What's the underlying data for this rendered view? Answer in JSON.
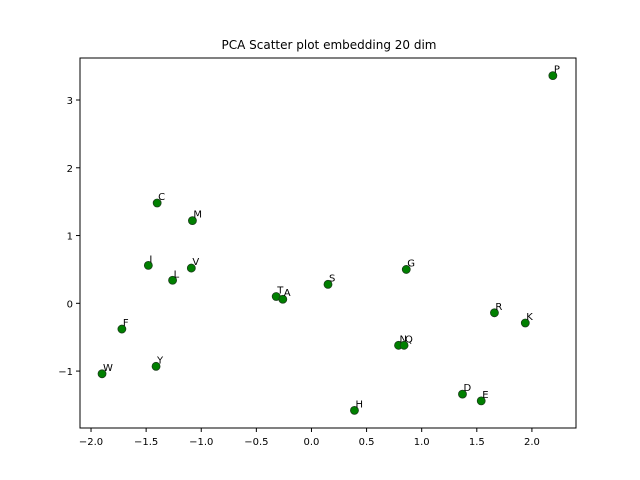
{
  "chart_data": {
    "type": "scatter",
    "title": "PCA Scatter plot embedding 20 dim",
    "xlabel": "",
    "ylabel": "",
    "xlim": [
      -2.1,
      2.4
    ],
    "ylim": [
      -1.84,
      3.62
    ],
    "xticks": [
      -2.0,
      -1.5,
      -1.0,
      -0.5,
      0.0,
      0.5,
      1.0,
      1.5,
      2.0
    ],
    "xtick_labels": [
      "−2.0",
      "−1.5",
      "−1.0",
      "−0.5",
      "0.0",
      "0.5",
      "1.0",
      "1.5",
      "2.0"
    ],
    "yticks": [
      -1,
      0,
      1,
      2,
      3
    ],
    "ytick_labels": [
      "−1",
      "0",
      "1",
      "2",
      "3"
    ],
    "grid": false,
    "marker_color": "#008000",
    "marker_edge": "#1a3d1a",
    "points": [
      {
        "label": "P",
        "x": 2.19,
        "y": 3.36
      },
      {
        "label": "C",
        "x": -1.4,
        "y": 1.48
      },
      {
        "label": "M",
        "x": -1.08,
        "y": 1.22
      },
      {
        "label": "I",
        "x": -1.48,
        "y": 0.56
      },
      {
        "label": "V",
        "x": -1.09,
        "y": 0.52
      },
      {
        "label": "L",
        "x": -1.26,
        "y": 0.34
      },
      {
        "label": "G",
        "x": 0.86,
        "y": 0.5
      },
      {
        "label": "S",
        "x": 0.15,
        "y": 0.28
      },
      {
        "label": "T",
        "x": -0.32,
        "y": 0.1
      },
      {
        "label": "A",
        "x": -0.26,
        "y": 0.06
      },
      {
        "label": "F",
        "x": -1.72,
        "y": -0.38
      },
      {
        "label": "R",
        "x": 1.66,
        "y": -0.14
      },
      {
        "label": "K",
        "x": 1.94,
        "y": -0.29
      },
      {
        "label": "N",
        "x": 0.79,
        "y": -0.62
      },
      {
        "label": "Q",
        "x": 0.84,
        "y": -0.62
      },
      {
        "label": "W",
        "x": -1.9,
        "y": -1.04
      },
      {
        "label": "Y",
        "x": -1.41,
        "y": -0.93
      },
      {
        "label": "D",
        "x": 1.37,
        "y": -1.34
      },
      {
        "label": "E",
        "x": 1.54,
        "y": -1.44
      },
      {
        "label": "H",
        "x": 0.39,
        "y": -1.58
      }
    ]
  }
}
